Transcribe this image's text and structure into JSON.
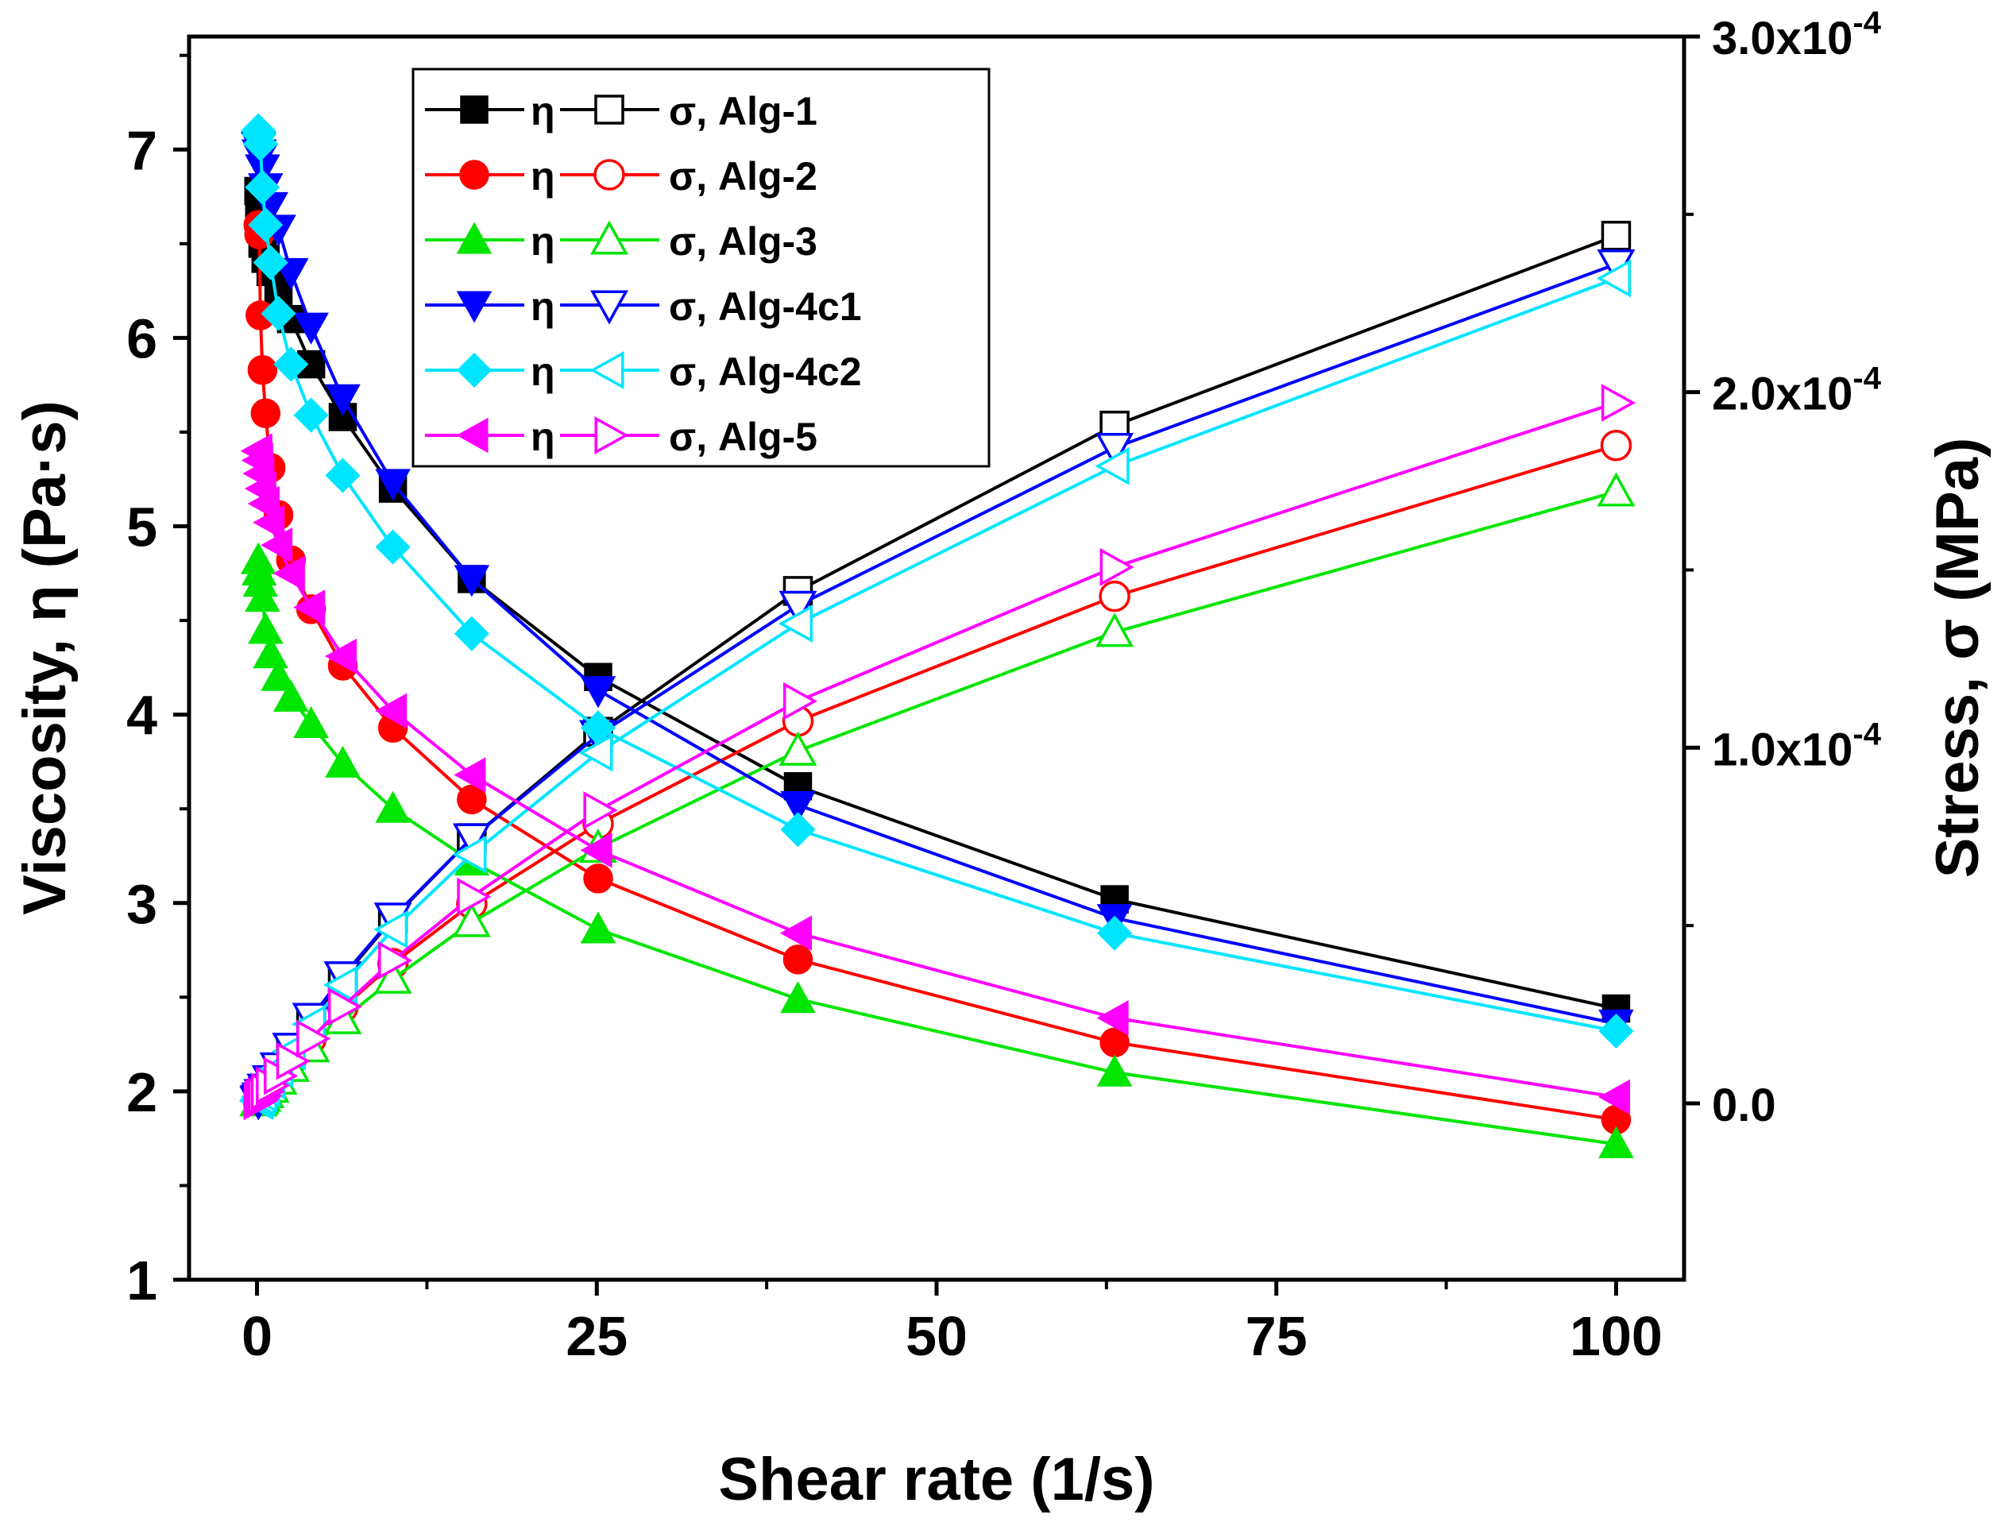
{
  "chart_data": {
    "type": "line",
    "x_axis": {
      "label": "Shear rate (1/s)",
      "range": [
        -5,
        105
      ],
      "ticks": [
        0,
        25,
        50,
        75,
        100
      ],
      "tick_labels": [
        "0",
        "25",
        "50",
        "75",
        "100"
      ]
    },
    "y_axis_left": {
      "label": "Viscosity, η (Pa·s)",
      "range": [
        1,
        7.6
      ],
      "ticks": [
        1,
        2,
        3,
        4,
        5,
        6,
        7
      ],
      "tick_labels": [
        "1",
        "2",
        "3",
        "4",
        "5",
        "6",
        "7"
      ]
    },
    "y_axis_right": {
      "label": "Stress, σ (MPa)",
      "range": [
        -4.96e-05,
        0.0003
      ],
      "ticks": [
        0,
        0.0001,
        0.0002,
        0.0003
      ],
      "tick_labels": [
        {
          "mantissa": "0.0",
          "exponent": ""
        },
        {
          "mantissa": "1.0x10",
          "exponent": "-4"
        },
        {
          "mantissa": "2.0x10",
          "exponent": "-4"
        },
        {
          "mantissa": "3.0x10",
          "exponent": "-4"
        }
      ]
    },
    "legend": {
      "placement": "top-left",
      "eta_label": "η",
      "entries": [
        "σ, Alg-1",
        "σ, Alg-2",
        "σ, Alg-3",
        "σ, Alg-4c1",
        "σ, Alg-4c2",
        "σ, Alg-5"
      ]
    },
    "series": [
      {
        "name": "Alg-1",
        "color": "#000000",
        "marker_eta": "square-filled",
        "marker_sigma": "square-open",
        "eta": {
          "x": [
            0.1,
            0.16,
            0.25,
            0.4,
            0.63,
            1,
            1.58,
            2.5,
            3.98,
            6.31,
            10,
            15.8,
            25.1,
            39.8,
            63.1,
            100
          ],
          "y": [
            6.78,
            6.67,
            6.58,
            6.5,
            6.42,
            6.35,
            6.25,
            6.1,
            5.86,
            5.58,
            5.2,
            4.72,
            4.2,
            3.62,
            3.02,
            2.44
          ]
        },
        "sigma": {
          "x": [
            0.1,
            0.16,
            0.25,
            0.4,
            0.63,
            1,
            1.58,
            2.5,
            3.98,
            6.31,
            10,
            15.8,
            25.1,
            39.8,
            63.1,
            100
          ],
          "y": [
            7e-07,
            1.1e-06,
            1.6e-06,
            2.6e-06,
            4e-06,
            6.4e-06,
            9.9e-06,
            1.53e-05,
            2.33e-05,
            3.52e-05,
            5.2e-05,
            7.46e-05,
            0.0001045,
            0.0001441,
            0.0001906,
            0.000244
          ]
        }
      },
      {
        "name": "Alg-2",
        "color": "#ff0000",
        "marker_eta": "circle-filled",
        "marker_sigma": "circle-open",
        "eta": {
          "x": [
            0.1,
            0.16,
            0.25,
            0.4,
            0.63,
            1,
            1.58,
            2.5,
            3.98,
            6.31,
            10,
            15.8,
            25.1,
            39.8,
            63.1,
            100
          ],
          "y": [
            6.6,
            6.55,
            6.12,
            5.83,
            5.6,
            5.31,
            5.06,
            4.82,
            4.56,
            4.26,
            3.93,
            3.55,
            3.13,
            2.7,
            2.26,
            1.85
          ]
        },
        "sigma": {
          "x": [
            0.1,
            0.16,
            0.25,
            0.4,
            0.63,
            1,
            1.58,
            2.5,
            3.98,
            6.31,
            10,
            15.8,
            25.1,
            39.8,
            63.1,
            100
          ],
          "y": [
            7e-07,
            1e-06,
            1.5e-06,
            2.3e-06,
            3.5e-06,
            5.3e-06,
            8e-06,
            1.21e-05,
            1.81e-05,
            2.69e-05,
            3.93e-05,
            5.61e-05,
            7.86e-05,
            0.0001075,
            0.0001426,
            0.000185
          ]
        }
      },
      {
        "name": "Alg-3",
        "color": "#00e600",
        "marker_eta": "triangle-up-filled",
        "marker_sigma": "triangle-up-open",
        "eta": {
          "x": [
            0.1,
            0.16,
            0.25,
            0.4,
            0.63,
            1,
            1.58,
            2.5,
            3.98,
            6.31,
            10,
            15.8,
            25.1,
            39.8,
            63.1,
            100
          ],
          "y": [
            4.82,
            4.76,
            4.7,
            4.62,
            4.45,
            4.32,
            4.2,
            4.09,
            3.95,
            3.74,
            3.5,
            3.22,
            2.86,
            2.49,
            2.1,
            1.72
          ]
        },
        "sigma": {
          "x": [
            0.1,
            0.16,
            0.25,
            0.4,
            0.63,
            1,
            1.58,
            2.5,
            3.98,
            6.31,
            10,
            15.8,
            25.1,
            39.8,
            63.1,
            100
          ],
          "y": [
            5e-07,
            8e-07,
            1.2e-06,
            1.8e-06,
            2.8e-06,
            4.3e-06,
            6.6e-06,
            1.02e-05,
            1.57e-05,
            2.36e-05,
            3.5e-05,
            5.09e-05,
            7.18e-05,
            9.91e-05,
            0.0001325,
            0.000172
          ]
        }
      },
      {
        "name": "Alg-4c1",
        "color": "#0000ff",
        "marker_eta": "triangle-down-filled",
        "marker_sigma": "triangle-down-open",
        "eta": {
          "x": [
            0.1,
            0.16,
            0.25,
            0.4,
            0.63,
            1,
            1.58,
            2.5,
            3.98,
            6.31,
            10,
            15.8,
            25.1,
            39.8,
            63.1,
            100
          ],
          "y": [
            7.02,
            6.98,
            6.96,
            6.9,
            6.8,
            6.7,
            6.58,
            6.35,
            6.06,
            5.68,
            5.23,
            4.72,
            4.13,
            3.52,
            2.92,
            2.36
          ]
        },
        "sigma": {
          "x": [
            0.1,
            0.16,
            0.25,
            0.4,
            0.63,
            1,
            1.58,
            2.5,
            3.98,
            6.31,
            10,
            15.8,
            25.1,
            39.8,
            63.1,
            100
          ],
          "y": [
            7e-07,
            1.1e-06,
            1.7e-06,
            2.7e-06,
            4.2e-06,
            6.6e-06,
            1.02e-05,
            1.57e-05,
            2.41e-05,
            3.58e-05,
            5.23e-05,
            7.46e-05,
            0.0001036,
            0.00014,
            0.0001844,
            0.000236
          ]
        }
      },
      {
        "name": "Alg-4c2",
        "color": "#00e5ff",
        "marker_eta": "diamond-filled",
        "marker_sigma": "triangle-left-open",
        "eta": {
          "x": [
            0.1,
            0.16,
            0.25,
            0.4,
            0.63,
            1,
            1.58,
            2.5,
            3.98,
            6.31,
            10,
            15.8,
            25.1,
            39.8,
            63.1,
            100
          ],
          "y": [
            7.1,
            7.08,
            7.03,
            6.8,
            6.6,
            6.4,
            6.13,
            5.86,
            5.59,
            5.27,
            4.89,
            4.43,
            3.93,
            3.39,
            2.84,
            2.32
          ]
        },
        "sigma": {
          "x": [
            0.1,
            0.16,
            0.25,
            0.4,
            0.63,
            1,
            1.58,
            2.5,
            3.98,
            6.31,
            10,
            15.8,
            25.1,
            39.8,
            63.1,
            100
          ],
          "y": [
            7e-07,
            1.1e-06,
            1.8e-06,
            2.7e-06,
            4.1e-06,
            6.4e-06,
            9.7e-06,
            1.46e-05,
            2.23e-05,
            3.33e-05,
            4.89e-05,
            7e-05,
            9.86e-05,
            0.0001349,
            0.0001792,
            0.000232
          ]
        }
      },
      {
        "name": "Alg-5",
        "color": "#ff00ff",
        "marker_eta": "triangle-left-filled",
        "marker_sigma": "triangle-right-open",
        "eta": {
          "x": [
            0.1,
            0.16,
            0.25,
            0.4,
            0.63,
            1,
            1.58,
            2.5,
            3.98,
            6.31,
            10,
            15.8,
            25.1,
            39.8,
            63.1,
            100
          ],
          "y": [
            5.4,
            5.35,
            5.28,
            5.2,
            5.12,
            5.02,
            4.9,
            4.75,
            4.57,
            4.31,
            4.02,
            3.68,
            3.28,
            2.84,
            2.39,
            1.97
          ]
        },
        "sigma": {
          "x": [
            0.1,
            0.16,
            0.25,
            0.4,
            0.63,
            1,
            1.58,
            2.5,
            3.98,
            6.31,
            10,
            15.8,
            25.1,
            39.8,
            63.1,
            100
          ],
          "y": [
            6e-07,
            9e-07,
            1.4e-06,
            2.1e-06,
            3.3e-06,
            5e-06,
            7.7e-06,
            1.19e-05,
            1.82e-05,
            2.72e-05,
            4.02e-05,
            5.81e-05,
            8.24e-05,
            0.0001131,
            0.0001508,
            0.000197
          ]
        }
      }
    ]
  }
}
